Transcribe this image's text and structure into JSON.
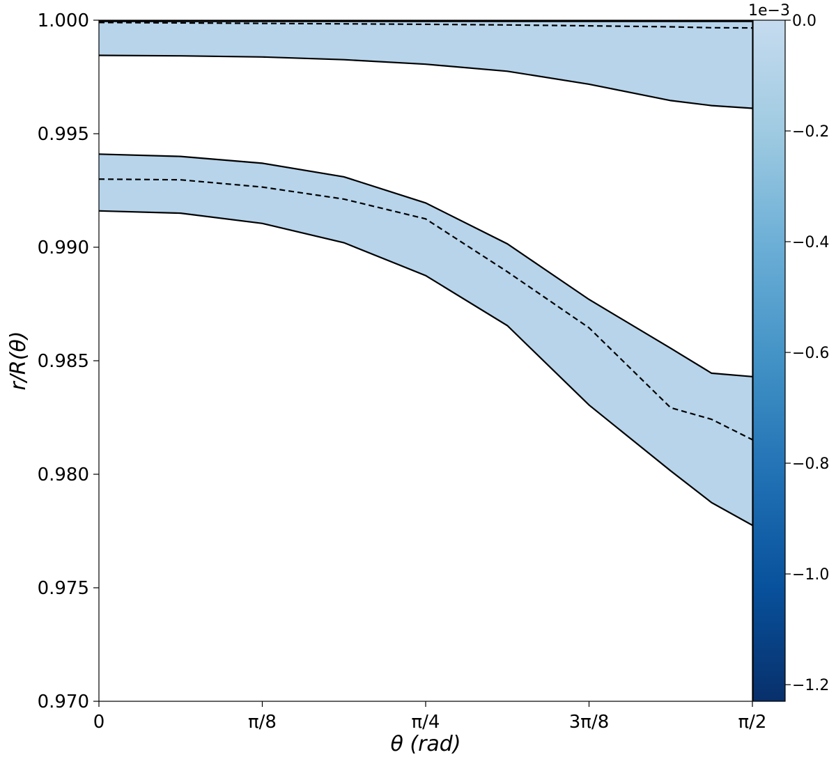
{
  "chart_data": {
    "type": "area",
    "title": "",
    "xlabel": "θ (rad)",
    "ylabel": "r/R(θ)",
    "xlim": [
      0,
      1.5708
    ],
    "ylim": [
      0.97,
      1.0
    ],
    "xticks": [
      {
        "value": 0,
        "label": "0"
      },
      {
        "value": 0.3927,
        "label": "π/8"
      },
      {
        "value": 0.7854,
        "label": "π/4"
      },
      {
        "value": 1.1781,
        "label": "3π/8"
      },
      {
        "value": 1.5708,
        "label": "π/2"
      }
    ],
    "yticks": [
      {
        "value": 0.97,
        "label": "0.970"
      },
      {
        "value": 0.975,
        "label": "0.975"
      },
      {
        "value": 0.98,
        "label": "0.980"
      },
      {
        "value": 0.985,
        "label": "0.985"
      },
      {
        "value": 0.99,
        "label": "0.990"
      },
      {
        "value": 0.995,
        "label": "0.995"
      },
      {
        "value": 1.0,
        "label": "1.000"
      }
    ],
    "grid": false,
    "bands": [
      {
        "x": [
          0,
          0.1963,
          0.3927,
          0.589,
          0.7854,
          0.9817,
          1.1781,
          1.3744,
          1.4726,
          1.5708
        ],
        "upper": [
          0.99995,
          0.99995,
          0.99995,
          0.99995,
          0.99995,
          0.99995,
          0.99995,
          0.99995,
          0.99995,
          0.99995
        ],
        "lower": [
          0.99845,
          0.99843,
          0.99838,
          0.99826,
          0.99806,
          0.99775,
          0.99718,
          0.99646,
          0.99624,
          0.99612
        ],
        "dashed": [
          0.9999,
          0.99988,
          0.99986,
          0.99984,
          0.99982,
          0.99979,
          0.99975,
          0.99971,
          0.99967,
          0.99966
        ]
      },
      {
        "x": [
          0,
          0.1963,
          0.3927,
          0.589,
          0.7854,
          0.9817,
          1.1781,
          1.3744,
          1.4726,
          1.5708
        ],
        "upper": [
          0.9941,
          0.994,
          0.9937,
          0.9931,
          0.99195,
          0.99015,
          0.9877,
          0.98555,
          0.98445,
          0.9843
        ],
        "lower": [
          0.9916,
          0.9915,
          0.99105,
          0.9902,
          0.98875,
          0.98655,
          0.98305,
          0.98015,
          0.97875,
          0.97775
        ],
        "dashed": [
          0.993,
          0.99297,
          0.99265,
          0.99212,
          0.99125,
          0.98892,
          0.98645,
          0.98293,
          0.98242,
          0.98152
        ]
      }
    ],
    "band_fill_value": -5e-05,
    "colorbar": {
      "range": [
        -0.00123,
        0.0
      ],
      "offset_label": "1e−3",
      "ticks": [
        {
          "value": 0.0,
          "label": "0.0"
        },
        {
          "value": -0.2,
          "label": "−0.2"
        },
        {
          "value": -0.4,
          "label": "−0.4"
        },
        {
          "value": -0.6,
          "label": "−0.6"
        },
        {
          "value": -0.8,
          "label": "−0.8"
        },
        {
          "value": -1.0,
          "label": "−1.0"
        },
        {
          "value": -1.2,
          "label": "−1.2"
        }
      ],
      "colormap": "Blues_r",
      "colors": [
        "#08306b",
        "#08519c",
        "#2171b5",
        "#4292c6",
        "#6baed6",
        "#9ecae1",
        "#c6dbef"
      ]
    },
    "fill_color": "#b7d4ea",
    "line_color": "#000000"
  }
}
